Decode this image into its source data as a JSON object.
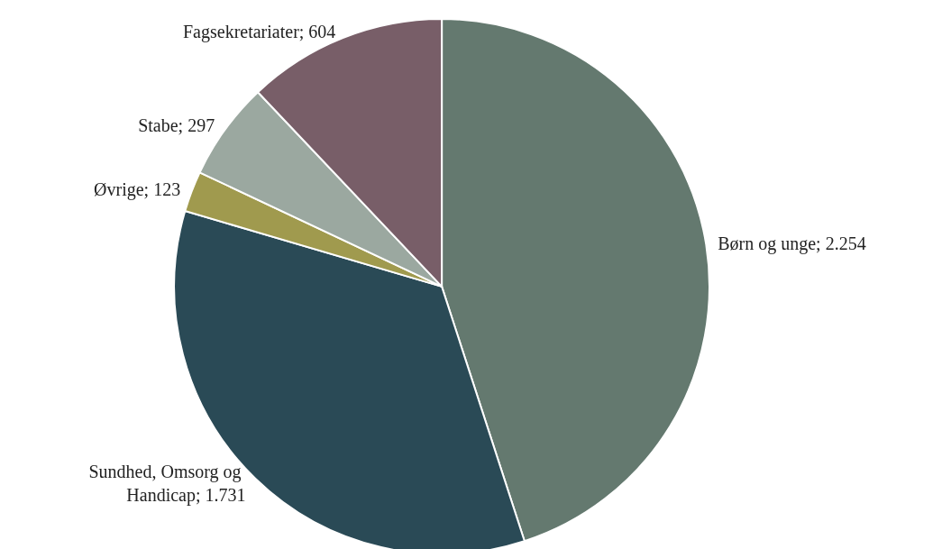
{
  "chart_data": {
    "type": "pie",
    "categories": [
      "Børn og unge",
      "Sundhed, Omsorg og Handicap",
      "Øvrige",
      "Stabe",
      "Fagsekretariater"
    ],
    "values": [
      2254,
      1731,
      123,
      297,
      604
    ],
    "colors": [
      "#64796f",
      "#2a4a56",
      "#a09a4e",
      "#9ba8a0",
      "#785e68"
    ],
    "value_labels": [
      "2.254",
      "1.731",
      "123",
      "297",
      "604"
    ],
    "legend": false
  }
}
